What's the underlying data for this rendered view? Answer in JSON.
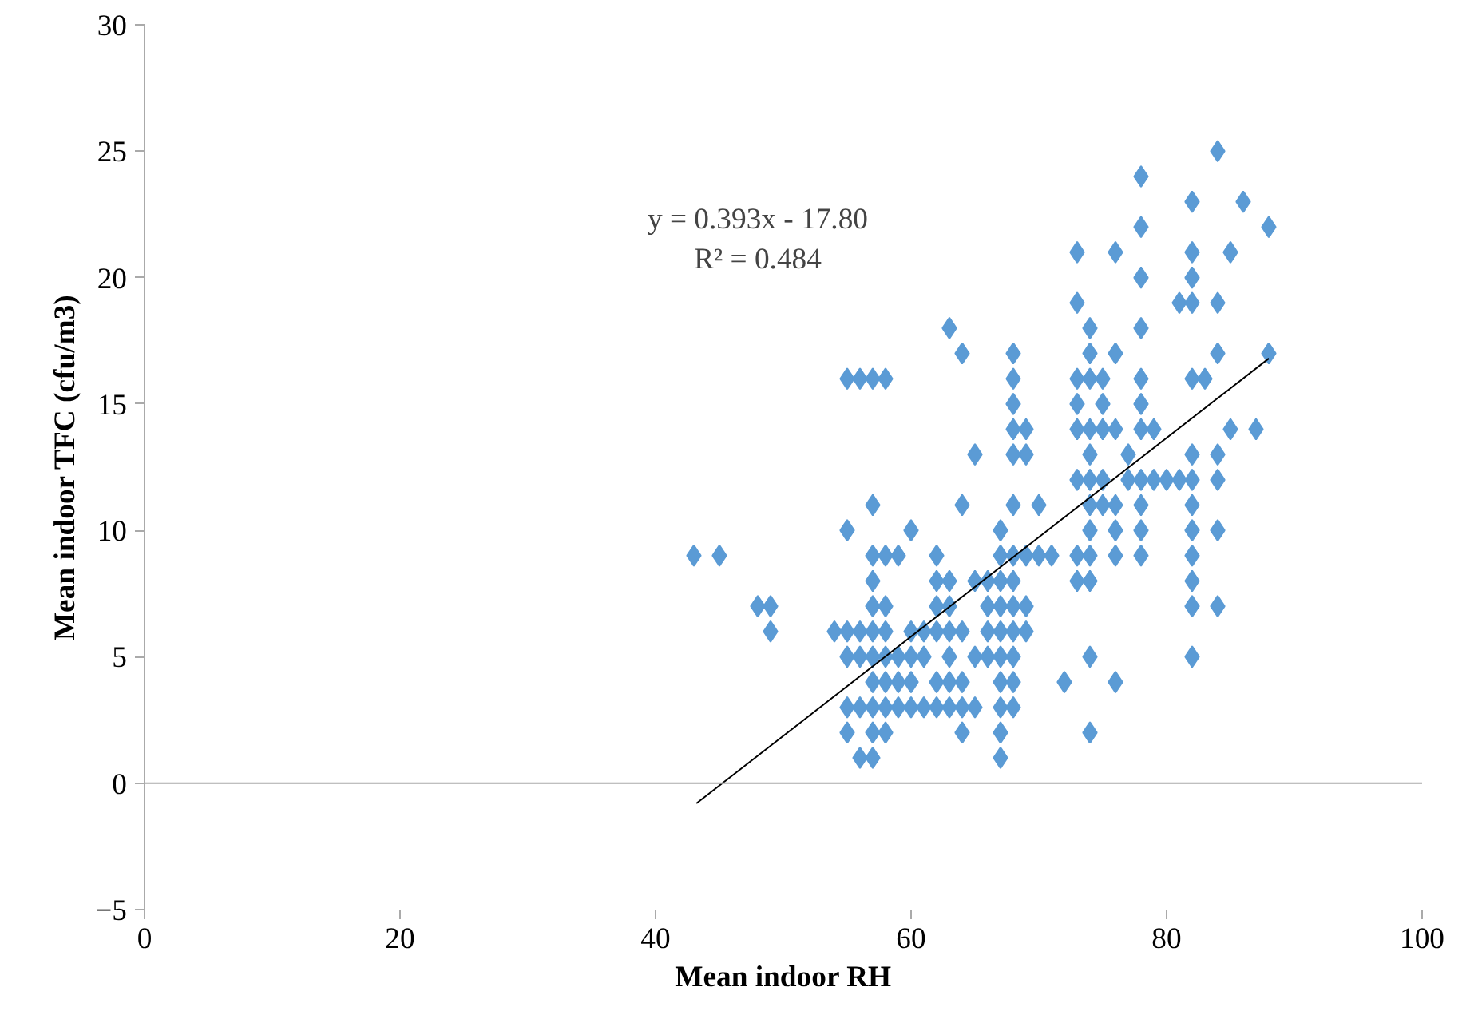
{
  "chart_data": {
    "type": "scatter",
    "xlabel": "Mean indoor RH",
    "ylabel": "Mean indoor TFC (cfu/m3)",
    "xlim": [
      0,
      100
    ],
    "ylim": [
      -5,
      30
    ],
    "xticks": [
      0,
      20,
      40,
      60,
      80,
      100
    ],
    "yticks": [
      -5,
      0,
      5,
      10,
      15,
      20,
      25,
      30
    ],
    "grid": false,
    "ref_lines": [
      {
        "axis": "y",
        "value": 0,
        "color": "#aaaaaa"
      }
    ],
    "annotations": [
      "y = 0.393x - 17.80",
      "R² = 0.484"
    ],
    "series": [
      {
        "marker": "diamond",
        "color": "#5b9bd5",
        "x": [
          84,
          78,
          82,
          86,
          78,
          88,
          73,
          76,
          82,
          85,
          78,
          82,
          73,
          81,
          82,
          84,
          63,
          74,
          78,
          64,
          68,
          74,
          76,
          84,
          88,
          55,
          56,
          57,
          58,
          68,
          73,
          74,
          75,
          78,
          82,
          83,
          68,
          73,
          75,
          78,
          68,
          69,
          73,
          74,
          75,
          76,
          78,
          79,
          85,
          87,
          65,
          68,
          69,
          74,
          77,
          82,
          84,
          73,
          74,
          75,
          77,
          78,
          79,
          80,
          81,
          82,
          84,
          57,
          64,
          68,
          70,
          74,
          75,
          76,
          78,
          82,
          55,
          60,
          67,
          74,
          76,
          78,
          82,
          84,
          43,
          45,
          57,
          58,
          59,
          62,
          67,
          68,
          69,
          70,
          71,
          73,
          74,
          76,
          78,
          82,
          57,
          62,
          63,
          65,
          66,
          67,
          68,
          73,
          74,
          82,
          48,
          49,
          57,
          58,
          62,
          63,
          66,
          67,
          68,
          69,
          82,
          84,
          49,
          54,
          55,
          56,
          57,
          58,
          60,
          61,
          62,
          63,
          64,
          66,
          67,
          68,
          69,
          55,
          56,
          57,
          58,
          59,
          60,
          61,
          63,
          65,
          66,
          67,
          68,
          74,
          82,
          57,
          58,
          59,
          60,
          62,
          63,
          64,
          67,
          68,
          72,
          76,
          55,
          56,
          57,
          58,
          59,
          60,
          61,
          62,
          63,
          64,
          65,
          67,
          68,
          55,
          57,
          58,
          64,
          67,
          74,
          56,
          57,
          67
        ],
        "values": [
          25,
          24,
          23,
          23,
          22,
          22,
          21,
          21,
          21,
          21,
          20,
          20,
          19,
          19,
          19,
          19,
          18,
          18,
          18,
          17,
          17,
          17,
          17,
          17,
          17,
          16,
          16,
          16,
          16,
          16,
          16,
          16,
          16,
          16,
          16,
          16,
          15,
          15,
          15,
          15,
          14,
          14,
          14,
          14,
          14,
          14,
          14,
          14,
          14,
          14,
          13,
          13,
          13,
          13,
          13,
          13,
          13,
          12,
          12,
          12,
          12,
          12,
          12,
          12,
          12,
          12,
          12,
          11,
          11,
          11,
          11,
          11,
          11,
          11,
          11,
          11,
          10,
          10,
          10,
          10,
          10,
          10,
          10,
          10,
          9,
          9,
          9,
          9,
          9,
          9,
          9,
          9,
          9,
          9,
          9,
          9,
          9,
          9,
          9,
          9,
          8,
          8,
          8,
          8,
          8,
          8,
          8,
          8,
          8,
          8,
          7,
          7,
          7,
          7,
          7,
          7,
          7,
          7,
          7,
          7,
          7,
          7,
          6,
          6,
          6,
          6,
          6,
          6,
          6,
          6,
          6,
          6,
          6,
          6,
          6,
          6,
          6,
          5,
          5,
          5,
          5,
          5,
          5,
          5,
          5,
          5,
          5,
          5,
          5,
          5,
          5,
          4,
          4,
          4,
          4,
          4,
          4,
          4,
          4,
          4,
          4,
          4,
          3,
          3,
          3,
          3,
          3,
          3,
          3,
          3,
          3,
          3,
          3,
          3,
          3,
          2,
          2,
          2,
          2,
          2,
          2,
          1,
          1,
          1
        ]
      },
      {
        "type": "line",
        "color": "#000000",
        "x": [
          43.2,
          88
        ],
        "values": [
          -0.8,
          16.8
        ]
      }
    ]
  }
}
